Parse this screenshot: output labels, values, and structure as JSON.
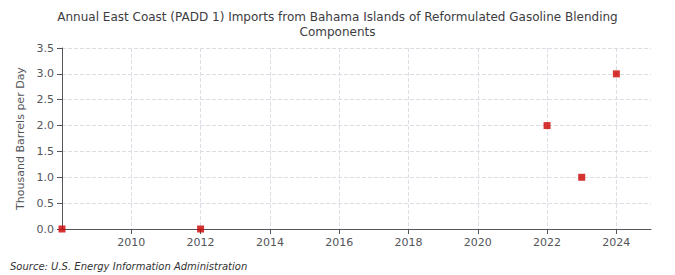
{
  "chart_data": {
    "type": "scatter",
    "title": "Annual East Coast (PADD 1) Imports from Bahama Islands of Reformulated Gasoline Blending\nComponents",
    "ylabel": "Thousand Barrels per Day",
    "source": "Source: U.S. Energy Information Administration",
    "x": [
      2008,
      2012,
      2022,
      2023,
      2024
    ],
    "values": [
      0.0,
      0.0,
      2.0,
      1.0,
      3.0
    ],
    "color": "#cc0000",
    "marker": "square",
    "xlim": [
      2008,
      2025
    ],
    "xticks": [
      2010,
      2012,
      2014,
      2016,
      2018,
      2020,
      2022,
      2024
    ],
    "ylim": [
      0,
      3.5
    ],
    "yticks": [
      {
        "value": 0,
        "label": "0.0"
      },
      0.5,
      {
        "value": 1,
        "label": "1.0"
      },
      1.5,
      {
        "value": 2,
        "label": "2.0"
      },
      2.5,
      {
        "value": 3,
        "label": "3.0"
      },
      3.5
    ],
    "grid": true
  }
}
